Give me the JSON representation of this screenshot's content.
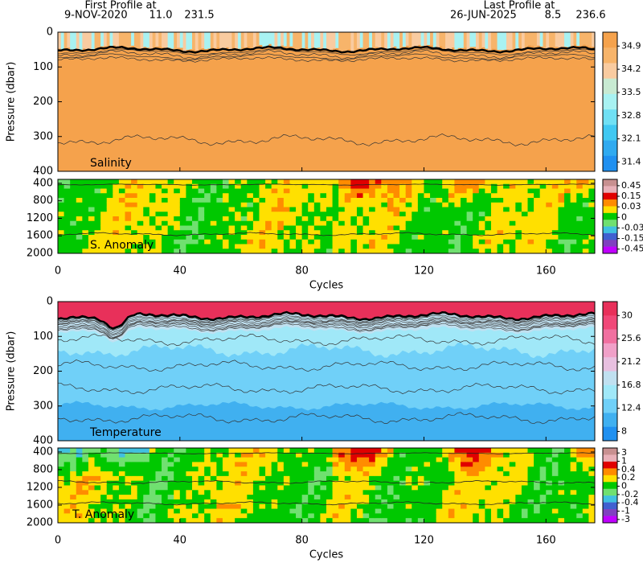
{
  "header": {
    "first_label": "First Profile at",
    "first_date": "9-NOV-2020",
    "first_lat": "11.0",
    "first_lon": "231.5",
    "last_label": "Last Profile at",
    "last_date": "26-JUN-2025",
    "last_lat": "8.5",
    "last_lon": "236.6"
  },
  "chart_data": [
    {
      "type": "profile",
      "label": "Salinity",
      "ylabel": "Pressure (dbar)",
      "xlim": [
        0,
        176
      ],
      "ylim": [
        0,
        400
      ],
      "xticks": [
        0,
        40,
        80,
        120,
        160
      ],
      "yticks": [
        0,
        100,
        200,
        300,
        400
      ],
      "colorbar": {
        "ticks": [
          34.9,
          34.2,
          33.5,
          32.8,
          32.1,
          31.4
        ],
        "colors": [
          "#f5a24c",
          "#f7b46a",
          "#f9cba0",
          "#c8ead2",
          "#a8f2f2",
          "#70e0f4",
          "#40c8f2",
          "#30aaf0",
          "#2090f0"
        ]
      }
    },
    {
      "type": "anomaly",
      "label": "S. Anomaly",
      "xlabel": "Cycles",
      "xlim": [
        0,
        176
      ],
      "ylim": [
        310,
        2000
      ],
      "xticks": [
        0,
        40,
        80,
        120,
        160
      ],
      "yticks": [
        400,
        800,
        1200,
        1600,
        2000
      ],
      "colorbar": {
        "ticks": [
          0.45,
          0.15,
          0.03,
          0,
          -0.03,
          -0.15,
          -0.45
        ],
        "colors": [
          "#c89090",
          "#e8b0b8",
          "#e00000",
          "#ff8c00",
          "#ffe000",
          "#00c800",
          "#70e070",
          "#40c0e0",
          "#4060d0",
          "#8040c0",
          "#c000ff"
        ]
      }
    },
    {
      "type": "profile",
      "label": "Temperature",
      "ylabel": "Pressure (dbar)",
      "xlim": [
        0,
        176
      ],
      "ylim": [
        0,
        400
      ],
      "xticks": [
        0,
        40,
        80,
        120,
        160
      ],
      "yticks": [
        0,
        100,
        200,
        300,
        400
      ],
      "colorbar": {
        "ticks": [
          30,
          25.6,
          21.2,
          16.8,
          12.4,
          8
        ],
        "colors": [
          "#e8305a",
          "#f04878",
          "#f070a0",
          "#f0a0c8",
          "#e8c0e0",
          "#c0e0f0",
          "#a0e8f8",
          "#70d0f8",
          "#40b0f0",
          "#2090f0"
        ]
      }
    },
    {
      "type": "anomaly",
      "label": "T. Anomaly",
      "xlabel": "Cycles",
      "xlim": [
        0,
        176
      ],
      "ylim": [
        310,
        2000
      ],
      "xticks": [
        0,
        40,
        80,
        120,
        160
      ],
      "yticks": [
        400,
        800,
        1200,
        1600,
        2000
      ],
      "colorbar": {
        "ticks": [
          3,
          1,
          0.4,
          0.2,
          0,
          -0.2,
          -0.4,
          -1,
          -3
        ],
        "colors": [
          "#c89090",
          "#e8b0b8",
          "#e00000",
          "#ff8c00",
          "#ffe000",
          "#00c800",
          "#70e070",
          "#40c0e0",
          "#4060d0",
          "#8040c0",
          "#c000ff"
        ]
      }
    }
  ]
}
